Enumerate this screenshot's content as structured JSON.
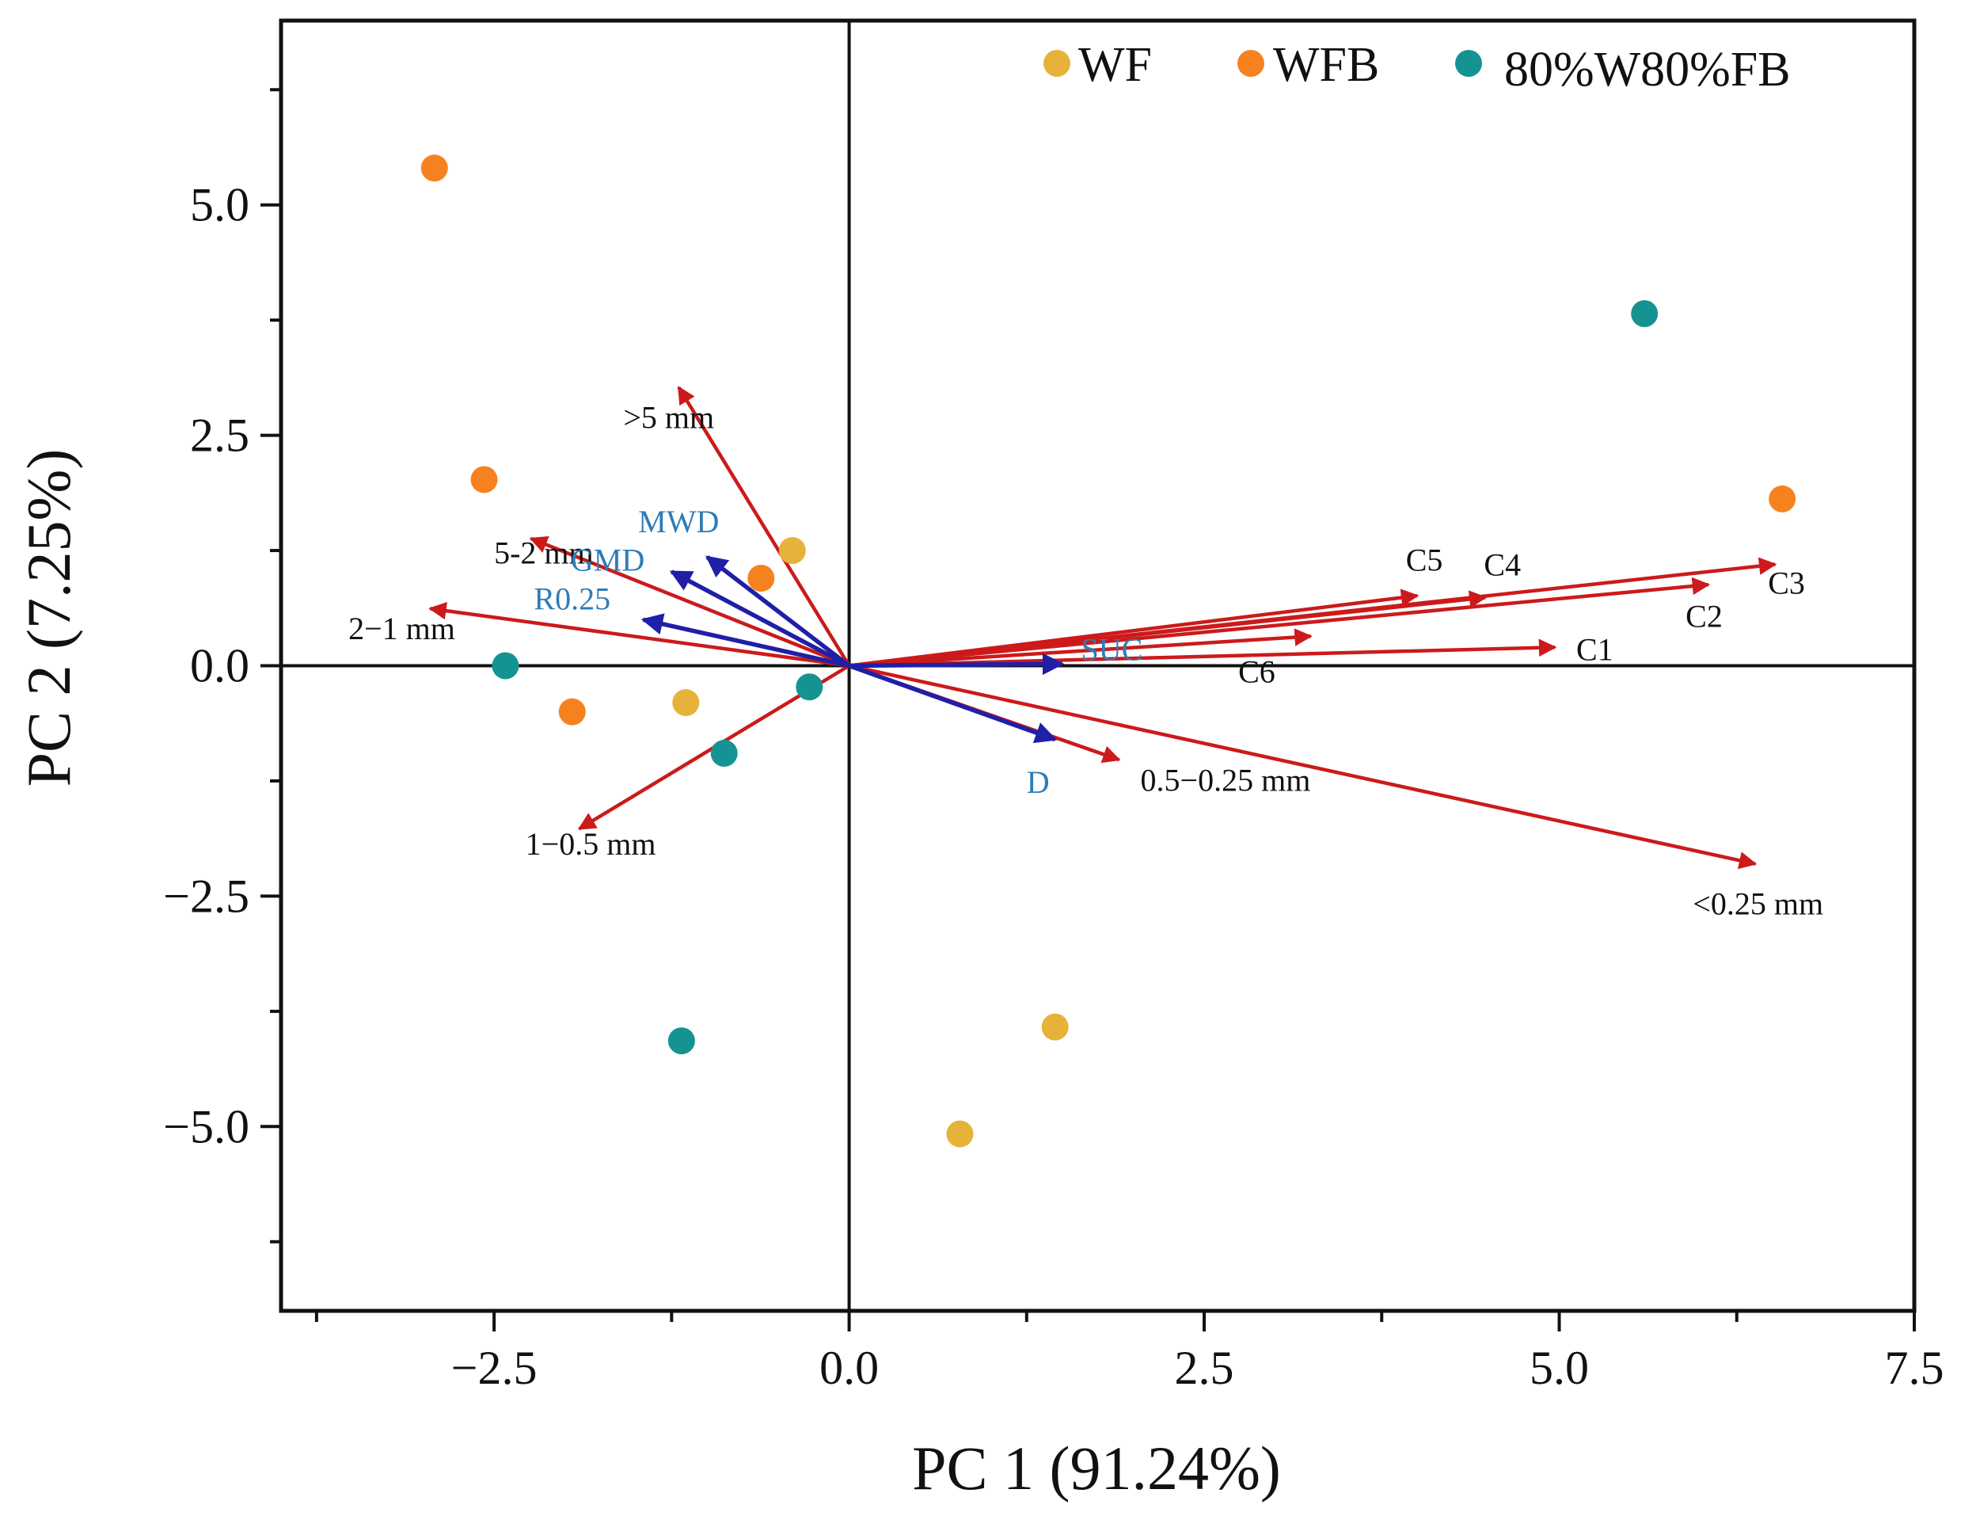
{
  "chart_data": {
    "type": "scatter",
    "subtype": "pca-biplot",
    "xlabel": "PC 1 (91.24%)",
    "ylabel": "PC 2 (7.25%)",
    "xlim": [
      -4.0,
      7.5
    ],
    "ylim": [
      -7.0,
      7.0
    ],
    "xticks": [
      {
        "value": -2.5,
        "label": "−2.5"
      },
      {
        "value": 0.0,
        "label": "0.0"
      },
      {
        "value": 2.5,
        "label": "2.5"
      },
      {
        "value": 5.0,
        "label": "5.0"
      },
      {
        "value": 7.5,
        "label": "7.5"
      }
    ],
    "yticks": [
      {
        "value": 5.0,
        "label": "5.0"
      },
      {
        "value": 2.5,
        "label": "2.5"
      },
      {
        "value": 0.0,
        "label": "0.0"
      },
      {
        "value": -2.5,
        "label": "−2.5"
      },
      {
        "value": -5.0,
        "label": "−5.0"
      }
    ],
    "legend_position": "top-right",
    "series": [
      {
        "name": "WF",
        "color": "#E6B23A",
        "points": [
          [
            -0.4,
            1.25
          ],
          [
            -1.15,
            -0.4
          ],
          [
            1.45,
            -3.92
          ],
          [
            0.78,
            -5.08
          ]
        ]
      },
      {
        "name": "WFB",
        "color": "#F5821F",
        "points": [
          [
            -2.92,
            5.4
          ],
          [
            -2.57,
            2.02
          ],
          [
            -0.62,
            0.95
          ],
          [
            -1.95,
            -0.5
          ],
          [
            6.57,
            1.81
          ]
        ]
      },
      {
        "name": "80%W80%FB",
        "color": "#159392",
        "points": [
          [
            -2.42,
            0.0
          ],
          [
            -0.28,
            -0.23
          ],
          [
            -0.88,
            -0.95
          ],
          [
            5.6,
            3.82
          ],
          [
            -1.18,
            -4.07
          ]
        ]
      }
    ],
    "vectors": [
      {
        "label": ">5 mm",
        "group": "red",
        "end": [
          -1.2,
          3.02
        ],
        "label_at": [
          -1.27,
          2.58
        ]
      },
      {
        "label": "5-2 mm",
        "group": "red",
        "end": [
          -2.24,
          1.38
        ],
        "label_at": [
          -2.15,
          1.11
        ]
      },
      {
        "label": "2−1 mm",
        "group": "red",
        "end": [
          -2.95,
          0.62
        ],
        "label_at": [
          -3.15,
          0.29
        ]
      },
      {
        "label": "1−0.5 mm",
        "group": "red",
        "end": [
          -1.9,
          -1.77
        ],
        "label_at": [
          -1.82,
          -2.05
        ]
      },
      {
        "label": "C1",
        "group": "red",
        "end": [
          4.97,
          0.2
        ],
        "label_at": [
          5.25,
          0.06
        ]
      },
      {
        "label": "C2",
        "group": "red",
        "end": [
          6.05,
          0.88
        ],
        "label_at": [
          6.02,
          0.42
        ]
      },
      {
        "label": "C3",
        "group": "red",
        "end": [
          6.52,
          1.1
        ],
        "label_at": [
          6.6,
          0.78
        ]
      },
      {
        "label": "C4",
        "group": "red",
        "end": [
          4.48,
          0.74
        ],
        "label_at": [
          4.6,
          0.98
        ]
      },
      {
        "label": "C5",
        "group": "red",
        "end": [
          4.0,
          0.76
        ],
        "label_at": [
          4.05,
          1.03
        ]
      },
      {
        "label": "C6",
        "group": "red",
        "end": [
          3.25,
          0.32
        ],
        "label_at": [
          2.87,
          -0.18
        ]
      },
      {
        "label": "0.5−0.25 mm",
        "group": "red",
        "end": [
          1.9,
          -1.02
        ],
        "label_at": [
          2.65,
          -1.36
        ]
      },
      {
        "label": "<0.25 mm",
        "group": "red",
        "end": [
          6.38,
          -2.15
        ],
        "label_at": [
          6.4,
          -2.7
        ]
      },
      {
        "label": "MWD",
        "group": "blue",
        "end": [
          -1.0,
          1.18
        ],
        "label_at": [
          -1.2,
          1.45
        ]
      },
      {
        "label": "GMD",
        "group": "blue",
        "end": [
          -1.25,
          1.02
        ],
        "label_at": [
          -1.7,
          1.03
        ]
      },
      {
        "label": "R0.25",
        "group": "blue",
        "end": [
          -1.45,
          0.5
        ],
        "label_at": [
          -1.95,
          0.61
        ]
      },
      {
        "label": "SUC",
        "group": "blue",
        "end": [
          1.5,
          0.02
        ],
        "label_at": [
          1.85,
          0.06
        ]
      },
      {
        "label": "D",
        "group": "blue",
        "end": [
          1.45,
          -0.8
        ],
        "label_at": [
          1.33,
          -1.38
        ]
      }
    ]
  },
  "colors": {
    "red_vector": "#CC1A1A",
    "blue_vector": "#1F1FA8",
    "blue_label": "#2E7CB8",
    "black_label": "#111111",
    "axis": "#111111"
  }
}
